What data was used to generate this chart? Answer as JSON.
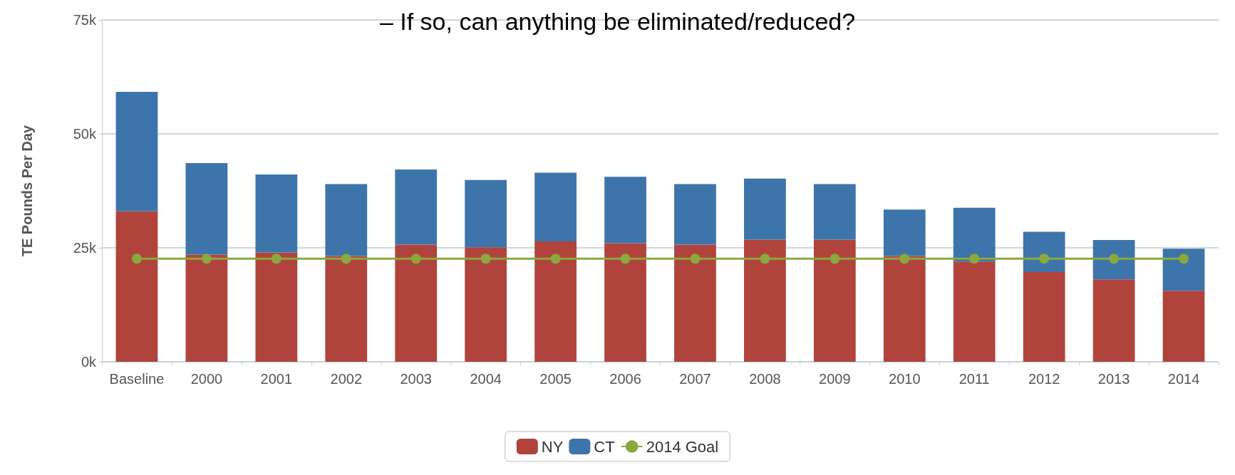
{
  "chart_data": {
    "type": "bar",
    "title": "– If so, can anything be eliminated/reduced?",
    "ylabel": "TE Pounds Per Day",
    "stacked": true,
    "categories": [
      "Baseline",
      "2000",
      "2001",
      "2002",
      "2003",
      "2004",
      "2005",
      "2006",
      "2007",
      "2008",
      "2009",
      "2010",
      "2011",
      "2012",
      "2013",
      "2014"
    ],
    "series": [
      {
        "name": "NY",
        "color": "#b0443c",
        "values": [
          33000,
          23500,
          24000,
          23200,
          25700,
          25100,
          26400,
          26000,
          25700,
          26800,
          26800,
          23200,
          22000,
          19700,
          18100,
          15600
        ]
      },
      {
        "name": "CT",
        "color": "#3d74aa",
        "values": [
          26200,
          20100,
          17100,
          15800,
          16500,
          14800,
          15100,
          14600,
          13300,
          13400,
          12200,
          10200,
          11800,
          8800,
          8600,
          9200
        ]
      },
      {
        "name": "2014 Goal",
        "type": "line",
        "color": "#8aa83e",
        "marker": "circle",
        "values": [
          22600,
          22600,
          22600,
          22600,
          22600,
          22600,
          22600,
          22600,
          22600,
          22600,
          22600,
          22600,
          22600,
          22600,
          22600,
          22600
        ]
      }
    ],
    "ylim": [
      0,
      75000
    ],
    "yticks": [
      {
        "value": 0,
        "label": "0k"
      },
      {
        "value": 25000,
        "label": "25k"
      },
      {
        "value": 50000,
        "label": "50k"
      },
      {
        "value": 75000,
        "label": "75k"
      }
    ],
    "grid": "y",
    "legend": "bottom"
  }
}
